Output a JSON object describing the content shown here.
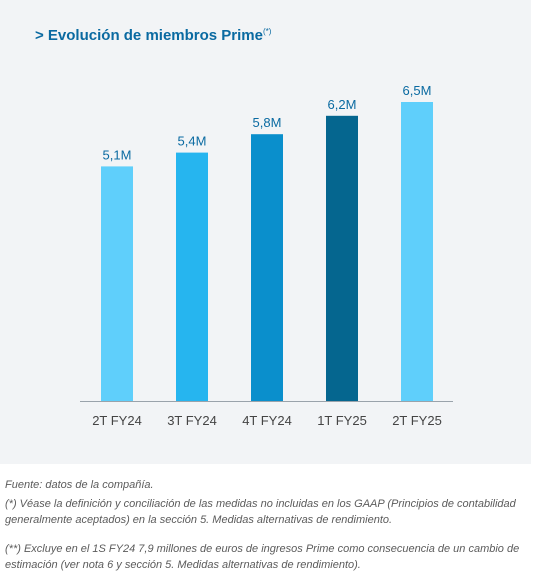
{
  "chart_title": "> Evolución de miembros Prime",
  "title_sup": "(*)",
  "colors": {
    "panel_bg": "#f2f4f6",
    "title": "#0a6aa1",
    "axis": "#9aa3ab",
    "label": "#0a6aa1",
    "bars": [
      "#5fcffb",
      "#26b5ef",
      "#0a8fcc",
      "#05668f",
      "#5fcffb"
    ]
  },
  "chart_data": {
    "type": "bar",
    "title": "> Evolución de miembros Prime",
    "categories": [
      "2T FY24",
      "3T FY24",
      "4T FY24",
      "1T FY25",
      "2T FY25"
    ],
    "values": [
      5.1,
      5.4,
      5.8,
      6.2,
      6.5
    ],
    "value_labels": [
      "5,1M",
      "5,4M",
      "5,8M",
      "6,2M",
      "6,5M"
    ],
    "ylim": [
      0,
      6.5
    ],
    "grid": false
  },
  "notes": {
    "source": "Fuente: datos de la compañía.",
    "note1": "(*) Véase la definición y conciliación de las medidas no incluidas en los GAAP (Principios de contabilidad generalmente aceptados) en la sección 5. Medidas alternativas de rendimiento.",
    "note2": "(**) Excluye en el 1S FY24  7,9 millones de euros de ingresos Prime como consecuencia de un cambio de estimación (ver nota 6 y sección 5. Medidas alternativas de rendimiento)."
  }
}
